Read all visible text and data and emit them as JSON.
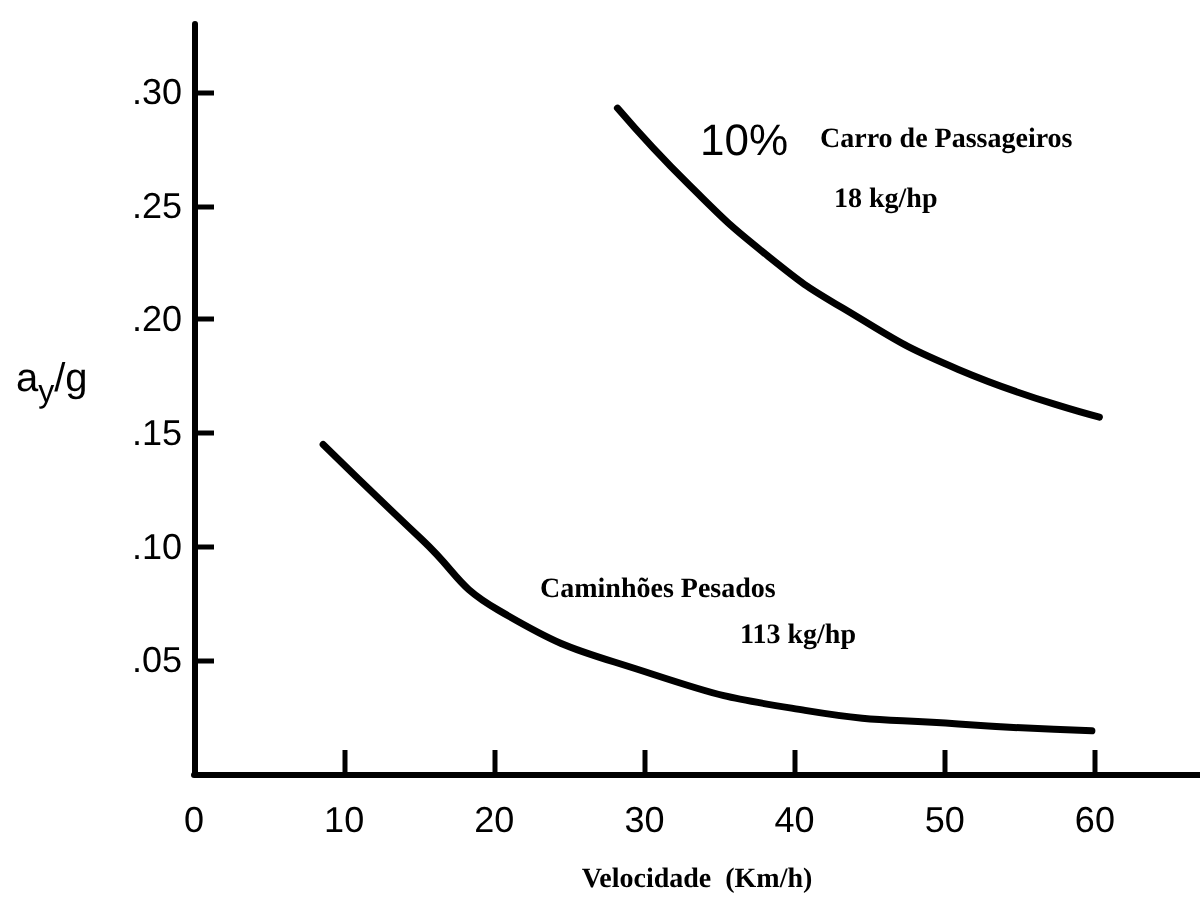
{
  "chart_data": {
    "type": "line",
    "xlabel": "Velocidade  (Km/h)",
    "ylabel": "a$_{y}$/g",
    "series": [
      {
        "color": "#000000",
        "x": [
          28.2,
          33.0,
          38.2,
          43.2,
          50.9,
          60.3
        ],
        "values": [
          0.293,
          0.259,
          0.228,
          0.205,
          0.178,
          0.157
        ]
      },
      {
        "color": "#000000",
        "x": [
          8.6,
          15.2,
          20.3,
          30.5,
          40.7,
          50.9,
          59.8
        ],
        "values": [
          0.145,
          0.103,
          0.072,
          0.044,
          0.028,
          0.022,
          0.019
        ]
      }
    ],
    "annotations": [
      "10%",
      "Carro de Passageiros",
      "18 kg/hp",
      "Caminhões Pesados",
      "113 kg/hp"
    ],
    "xlim": [
      0,
      67
    ],
    "ylim": [
      0,
      0.33
    ],
    "xticks": [
      0,
      10,
      20,
      30,
      40,
      50,
      60
    ],
    "yticks": [
      {
        "value": 0.05,
        "label": ".05"
      },
      {
        "value": 0.1,
        "label": ".10"
      },
      {
        "value": 0.15,
        "label": ".15"
      },
      {
        "value": 0.2,
        "label": ".20"
      },
      {
        "value": 0.25,
        "label": ".25"
      },
      {
        "value": 0.3,
        "label": ".30"
      }
    ],
    "grid": false,
    "marker": "none",
    "line_style": "solid"
  }
}
